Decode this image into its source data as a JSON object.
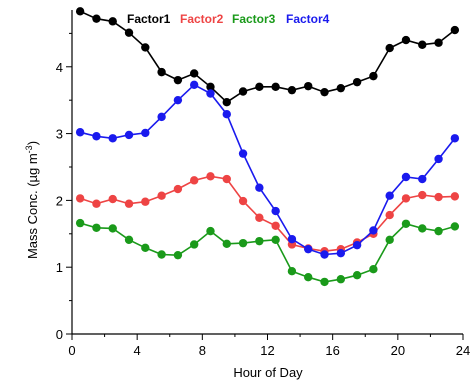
{
  "chart_data": {
    "type": "line",
    "title": "",
    "xlabel": "Hour of Day",
    "ylabel": "Mass Conc. (µg m",
    "ylabel_superscript": "-3",
    "ylabel_suffix": ")",
    "xlim": [
      0,
      24
    ],
    "ylim": [
      0,
      4.85
    ],
    "xticks": [
      0,
      4,
      8,
      12,
      16,
      20,
      24
    ],
    "yticks": [
      0,
      1,
      2,
      3,
      4
    ],
    "grid": false,
    "legend_position": "top",
    "x": [
      0.5,
      1.5,
      2.5,
      3.5,
      4.5,
      5.5,
      6.5,
      7.5,
      8.5,
      9.5,
      10.5,
      11.5,
      12.5,
      13.5,
      14.5,
      15.5,
      16.5,
      17.5,
      18.5,
      19.5,
      20.5,
      21.5,
      22.5,
      23.5
    ],
    "series": [
      {
        "name": "Factor1",
        "color": "#000000",
        "values": [
          4.83,
          4.72,
          4.68,
          4.51,
          4.29,
          3.92,
          3.8,
          3.9,
          3.7,
          3.47,
          3.63,
          3.7,
          3.7,
          3.65,
          3.71,
          3.62,
          3.68,
          3.77,
          3.86,
          4.28,
          4.4,
          4.33,
          4.36,
          4.55
        ]
      },
      {
        "name": "Factor2",
        "color": "#ee4444",
        "values": [
          2.03,
          1.95,
          2.02,
          1.95,
          1.98,
          2.07,
          2.17,
          2.3,
          2.36,
          2.32,
          1.99,
          1.74,
          1.62,
          1.34,
          1.28,
          1.24,
          1.27,
          1.37,
          1.5,
          1.78,
          2.03,
          2.08,
          2.05,
          2.06
        ]
      },
      {
        "name": "Factor3",
        "color": "#1a9a1a",
        "values": [
          1.66,
          1.59,
          1.58,
          1.41,
          1.29,
          1.19,
          1.18,
          1.34,
          1.54,
          1.35,
          1.36,
          1.39,
          1.41,
          0.94,
          0.85,
          0.78,
          0.82,
          0.88,
          0.97,
          1.41,
          1.65,
          1.58,
          1.54,
          1.61
        ]
      },
      {
        "name": "Factor4",
        "color": "#1a1aee",
        "values": [
          3.02,
          2.96,
          2.93,
          2.98,
          3.01,
          3.25,
          3.5,
          3.73,
          3.6,
          3.29,
          2.7,
          2.19,
          1.84,
          1.42,
          1.27,
          1.19,
          1.21,
          1.33,
          1.55,
          2.07,
          2.35,
          2.32,
          2.62,
          2.93
        ]
      }
    ]
  }
}
